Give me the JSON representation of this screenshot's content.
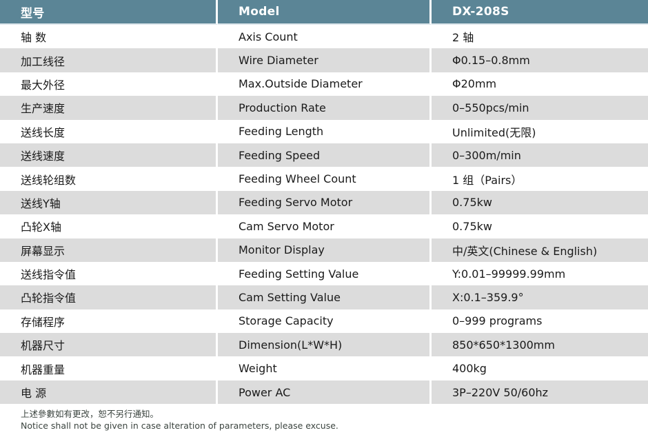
{
  "table": {
    "header": {
      "model_cn": "型号",
      "model_en": "Model",
      "model_value": "DX-208S"
    },
    "rows": [
      {
        "cn": "轴 数",
        "en": "Axis Count",
        "value": "2 轴"
      },
      {
        "cn": "加工线径",
        "en": "Wire Diameter",
        "value": "Φ0.15–0.8mm"
      },
      {
        "cn": "最大外径",
        "en": "Max.Outside Diameter",
        "value": "Φ20mm"
      },
      {
        "cn": "生产速度",
        "en": "Production Rate",
        "value": "0–550pcs/min"
      },
      {
        "cn": "送线长度",
        "en": "Feeding Length",
        "value": "Unlimited(无限)"
      },
      {
        "cn": "送线速度",
        "en": "Feeding Speed",
        "value": "0–300m/min"
      },
      {
        "cn": "送线轮组数",
        "en": "Feeding Wheel Count",
        "value": "1 组（Pairs）"
      },
      {
        "cn": "送线Y轴",
        "en": "Feeding Servo Motor",
        "value": "0.75kw"
      },
      {
        "cn": "凸轮X轴",
        "en": "Cam Servo Motor",
        "value": "0.75kw"
      },
      {
        "cn": "屏幕显示",
        "en": "Monitor Display",
        "value": "中/英文(Chinese & English)"
      },
      {
        "cn": "送线指令值",
        "en": "Feeding Setting Value",
        "value": "Y:0.01–99999.99mm"
      },
      {
        "cn": "凸轮指令值",
        "en": "Cam Setting Value",
        "value": "X:0.1–359.9°"
      },
      {
        "cn": "存储程序",
        "en": "Storage Capacity",
        "value": "0–999 programs"
      },
      {
        "cn": "机器尺寸",
        "en": "Dimension(L*W*H)",
        "value": "850*650*1300mm"
      },
      {
        "cn": "机器重量",
        "en": "Weight",
        "value": "400kg"
      },
      {
        "cn": "电 源",
        "en": "Power AC",
        "value": "3P–220V 50/60hz"
      }
    ]
  },
  "footer": {
    "note_cn": "上述參數如有更改，恕不另行通知。",
    "note_en": "Notice shall not be given in case alteration of parameters, please excuse."
  },
  "colors": {
    "header_bg": "#5b8596",
    "row_alt_bg": "#dcdcdc",
    "row_bg": "#ffffff",
    "cell_text": "#1a1a1a",
    "header_text": "#ffffff",
    "note_text": "#3b443f"
  }
}
